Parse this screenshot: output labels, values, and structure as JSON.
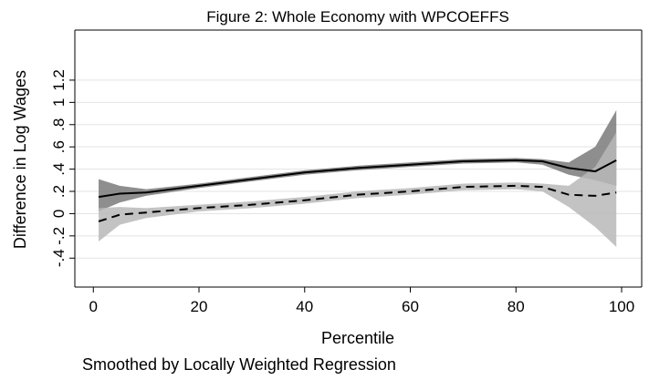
{
  "chart_data": {
    "type": "line",
    "title": "Figure 2: Whole Economy with WPCOEFFS",
    "x_label": "Percentile",
    "y_label": "Difference in Log Wages",
    "note": "Smoothed by Locally Weighted Regression",
    "x": [
      1,
      5,
      10,
      20,
      30,
      40,
      50,
      60,
      70,
      80,
      85,
      90,
      95,
      99
    ],
    "series": [
      {
        "color": "#000000",
        "dash": "solid",
        "band_color": "#7a7a7a",
        "values": [
          0.15,
          0.18,
          0.19,
          0.25,
          0.31,
          0.37,
          0.41,
          0.44,
          0.47,
          0.48,
          0.47,
          0.41,
          0.38,
          0.48
        ],
        "upper": [
          0.31,
          0.25,
          0.22,
          0.27,
          0.33,
          0.39,
          0.43,
          0.46,
          0.49,
          0.5,
          0.49,
          0.46,
          0.6,
          0.93
        ],
        "lower": [
          0.02,
          0.1,
          0.16,
          0.23,
          0.29,
          0.35,
          0.39,
          0.42,
          0.45,
          0.46,
          0.44,
          0.35,
          0.3,
          0.25
        ]
      },
      {
        "color": "#000000",
        "dash": "dashed",
        "band_color": "#b8b8b8",
        "values": [
          -0.07,
          -0.01,
          0.01,
          0.05,
          0.08,
          0.12,
          0.17,
          0.2,
          0.24,
          0.25,
          0.24,
          0.17,
          0.16,
          0.19
        ],
        "upper": [
          0.05,
          0.06,
          0.05,
          0.08,
          0.11,
          0.15,
          0.2,
          0.23,
          0.27,
          0.28,
          0.27,
          0.25,
          0.42,
          0.73
        ],
        "lower": [
          -0.25,
          -0.1,
          -0.04,
          0.02,
          0.05,
          0.09,
          0.14,
          0.17,
          0.21,
          0.22,
          0.2,
          0.06,
          -0.12,
          -0.3
        ]
      }
    ],
    "xlim": [
      -3.5,
      103.8
    ],
    "ylim": [
      -0.66,
      1.65
    ],
    "xticks": [
      0,
      20,
      40,
      60,
      80,
      100
    ],
    "yticks": [
      {
        "value": -0.4,
        "label": "-.4"
      },
      {
        "value": -0.2,
        "label": "-.2"
      },
      0,
      {
        "value": 0.2,
        "label": ".2"
      },
      {
        "value": 0.4,
        "label": ".4"
      },
      {
        "value": 0.6,
        "label": ".6"
      },
      {
        "value": 0.8,
        "label": ".8"
      },
      1,
      1.2
    ],
    "grid": true
  }
}
